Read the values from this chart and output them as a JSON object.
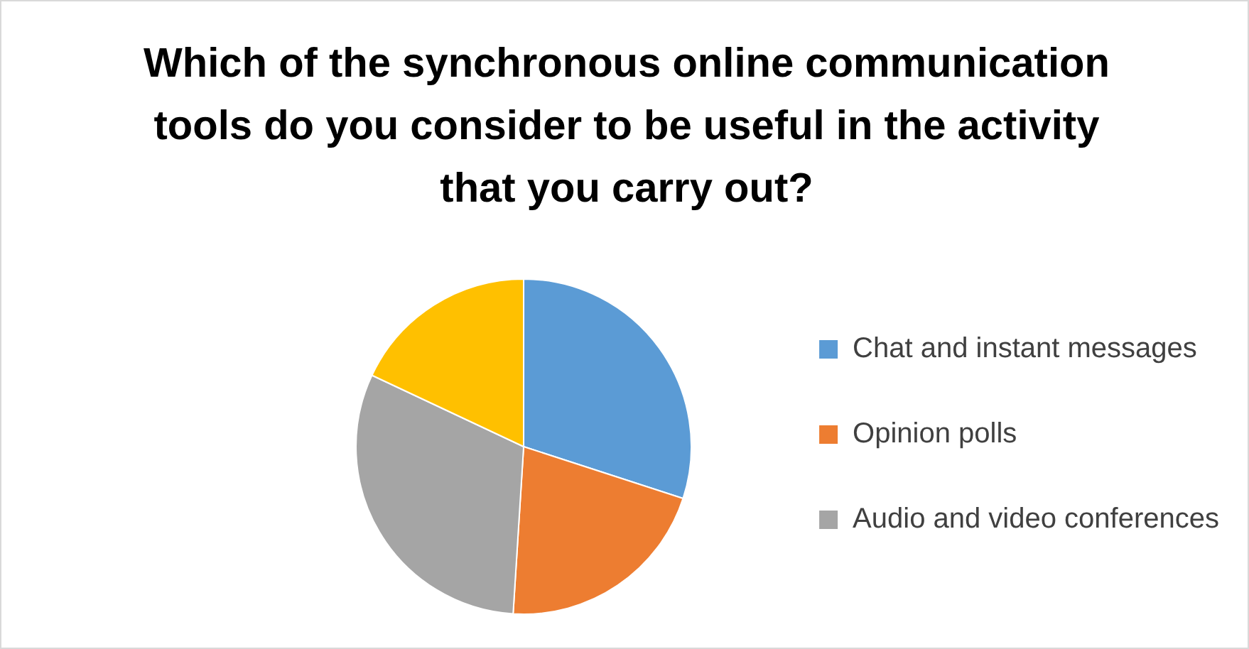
{
  "chart_data": {
    "type": "pie",
    "title": "Which of the synchronous online communication tools do you consider to be useful in the activity that you carry out?",
    "categories": [
      "Chat and instant messages",
      "Opinion polls",
      "Audio and video conferences",
      null
    ],
    "values": [
      30,
      21,
      31,
      18
    ],
    "colors": [
      "#5b9bd5",
      "#ed7d31",
      "#a5a5a5",
      "#ffc000"
    ],
    "legend": "right"
  }
}
